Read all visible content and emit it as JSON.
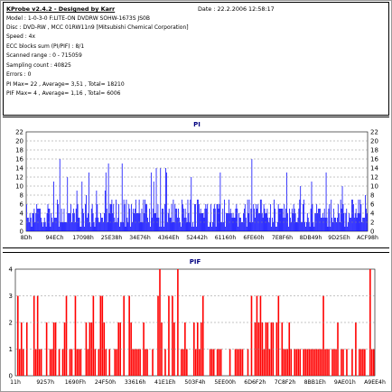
{
  "header": {
    "title": "KProbe v2.4.2 - Designed by Karr",
    "date": "Date : 22.2.2006 12:58:17"
  },
  "info_lines": [
    "Model : 1-0-3-0 F:LITE-ON DVDRW SOHW-1673S JS0B",
    "Disc : DVD-RW , MCC 01RW11n9 [Mitsubishi Chemical Corporation]",
    "Speed : 4x",
    "ECC blocks sum (PI/PIF) : 8/1",
    "Scanned range : 0 - 715059",
    "Sampling count : 40825",
    "Errors : 0",
    "PI Max= 22 , Average= 3,51 , Total= 18210",
    "PIF Max= 4 , Average= 1,16 , Total= 6006"
  ],
  "colors": {
    "pi_bar": "#0000ff",
    "pif_bar": "#ff0000",
    "grid": "#888888",
    "background": "#ffffff",
    "title": "#000080"
  },
  "chart_data": [
    {
      "type": "bar",
      "title": "PI",
      "ylim": [
        0,
        22
      ],
      "yticks": [
        0,
        2,
        4,
        6,
        8,
        10,
        12,
        14,
        16,
        18,
        20,
        22
      ],
      "right_axis": true,
      "grid": true,
      "xticks": [
        "8Dh",
        "94ECh",
        "17098h",
        "25E38h",
        "34E76h",
        "4364Eh",
        "52442h",
        "61160h",
        "6FE60h",
        "7E8F6h",
        "8DB49h",
        "9D25Eh",
        "ACF98h"
      ],
      "sample_count": 400,
      "max": 22,
      "average": 3.51,
      "series_seed": 17
    },
    {
      "type": "bar",
      "title": "PIF",
      "ylim": [
        0,
        4
      ],
      "yticks": [
        0,
        1,
        2,
        3,
        4
      ],
      "right_axis": false,
      "grid": true,
      "xticks": [
        "11h",
        "9257h",
        "1690Fh",
        "24F50h",
        "33616h",
        "41E1Eh",
        "503F4h",
        "5EE00h",
        "6D6F2h",
        "7C8F2h",
        "8BB1Eh",
        "9AE01h",
        "A9EE4h"
      ],
      "sample_count": 200,
      "max": 4,
      "average": 1.16,
      "series_seed": 29
    }
  ]
}
